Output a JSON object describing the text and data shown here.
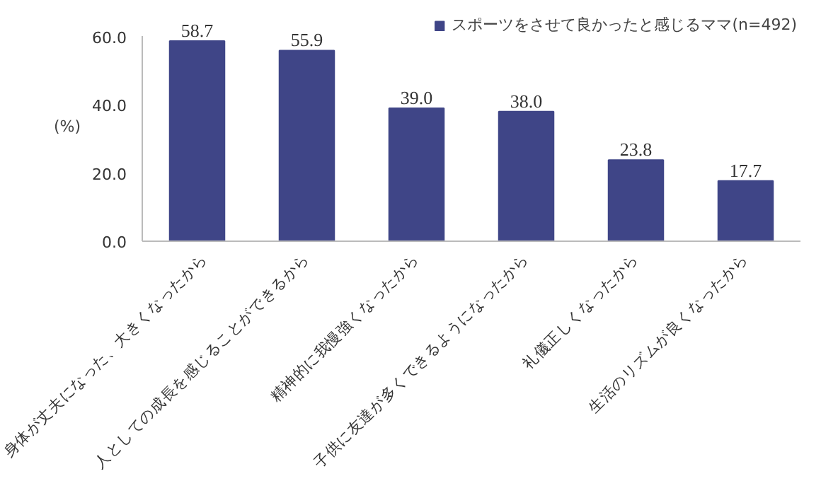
{
  "chart_data": {
    "type": "bar",
    "ylabel": "(%)",
    "categories": [
      "身体が丈夫になった、大きくなったから",
      "人としての成長を感じることができるから",
      "精神的に我慢強くなったから",
      "子供に友達が多くできるようになったから",
      "礼儀正しくなったから",
      "生活のリズムが良くなったから"
    ],
    "series": [
      {
        "name": "スポーツをさせて良かったと感じるママ(n=492)",
        "color": "#3f4587",
        "values": [
          58.7,
          55.9,
          39.0,
          38.0,
          23.8,
          17.7
        ]
      }
    ],
    "ylim": [
      0,
      60
    ],
    "yticks": [
      {
        "value": 0,
        "label": "0.0"
      },
      {
        "value": 20,
        "label": "20.0"
      },
      {
        "value": 40,
        "label": "40.0"
      },
      {
        "value": 60,
        "label": "60.0"
      }
    ],
    "value_labels": [
      "58.7",
      "55.9",
      "39.0",
      "38.0",
      "23.8",
      "17.7"
    ],
    "legend": "top right",
    "grid": false
  }
}
